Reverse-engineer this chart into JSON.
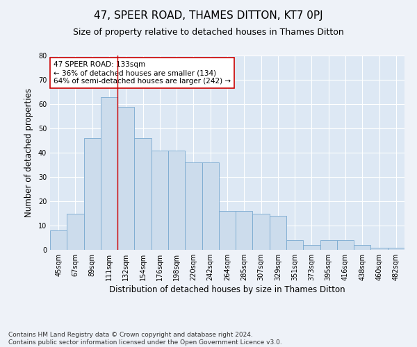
{
  "title": "47, SPEER ROAD, THAMES DITTON, KT7 0PJ",
  "subtitle": "Size of property relative to detached houses in Thames Ditton",
  "xlabel": "Distribution of detached houses by size in Thames Ditton",
  "ylabel": "Number of detached properties",
  "bar_color": "#ccdcec",
  "bar_edge_color": "#7aaad0",
  "background_color": "#dde8f4",
  "grid_color": "#ffffff",
  "fig_bg_color": "#eef2f8",
  "categories": [
    "45sqm",
    "67sqm",
    "89sqm",
    "111sqm",
    "132sqm",
    "154sqm",
    "176sqm",
    "198sqm",
    "220sqm",
    "242sqm",
    "264sqm",
    "285sqm",
    "307sqm",
    "329sqm",
    "351sqm",
    "373sqm",
    "395sqm",
    "416sqm",
    "438sqm",
    "460sqm",
    "482sqm"
  ],
  "values": [
    8,
    15,
    46,
    63,
    59,
    46,
    41,
    41,
    36,
    36,
    16,
    16,
    15,
    14,
    4,
    2,
    4,
    4,
    2,
    1,
    1
  ],
  "ylim": [
    0,
    80
  ],
  "yticks": [
    0,
    10,
    20,
    30,
    40,
    50,
    60,
    70,
    80
  ],
  "vline_x": 3.5,
  "vline_color": "#cc0000",
  "annotation_line1": "47 SPEER ROAD: 133sqm",
  "annotation_line2": "← 36% of detached houses are smaller (134)",
  "annotation_line3": "64% of semi-detached houses are larger (242) →",
  "annotation_box_color": "#ffffff",
  "annotation_box_edge": "#cc0000",
  "footer_line1": "Contains HM Land Registry data © Crown copyright and database right 2024.",
  "footer_line2": "Contains public sector information licensed under the Open Government Licence v3.0.",
  "title_fontsize": 11,
  "subtitle_fontsize": 9,
  "xlabel_fontsize": 8.5,
  "ylabel_fontsize": 8.5,
  "annotation_fontsize": 7.5,
  "footer_fontsize": 6.5,
  "tick_fontsize": 7
}
